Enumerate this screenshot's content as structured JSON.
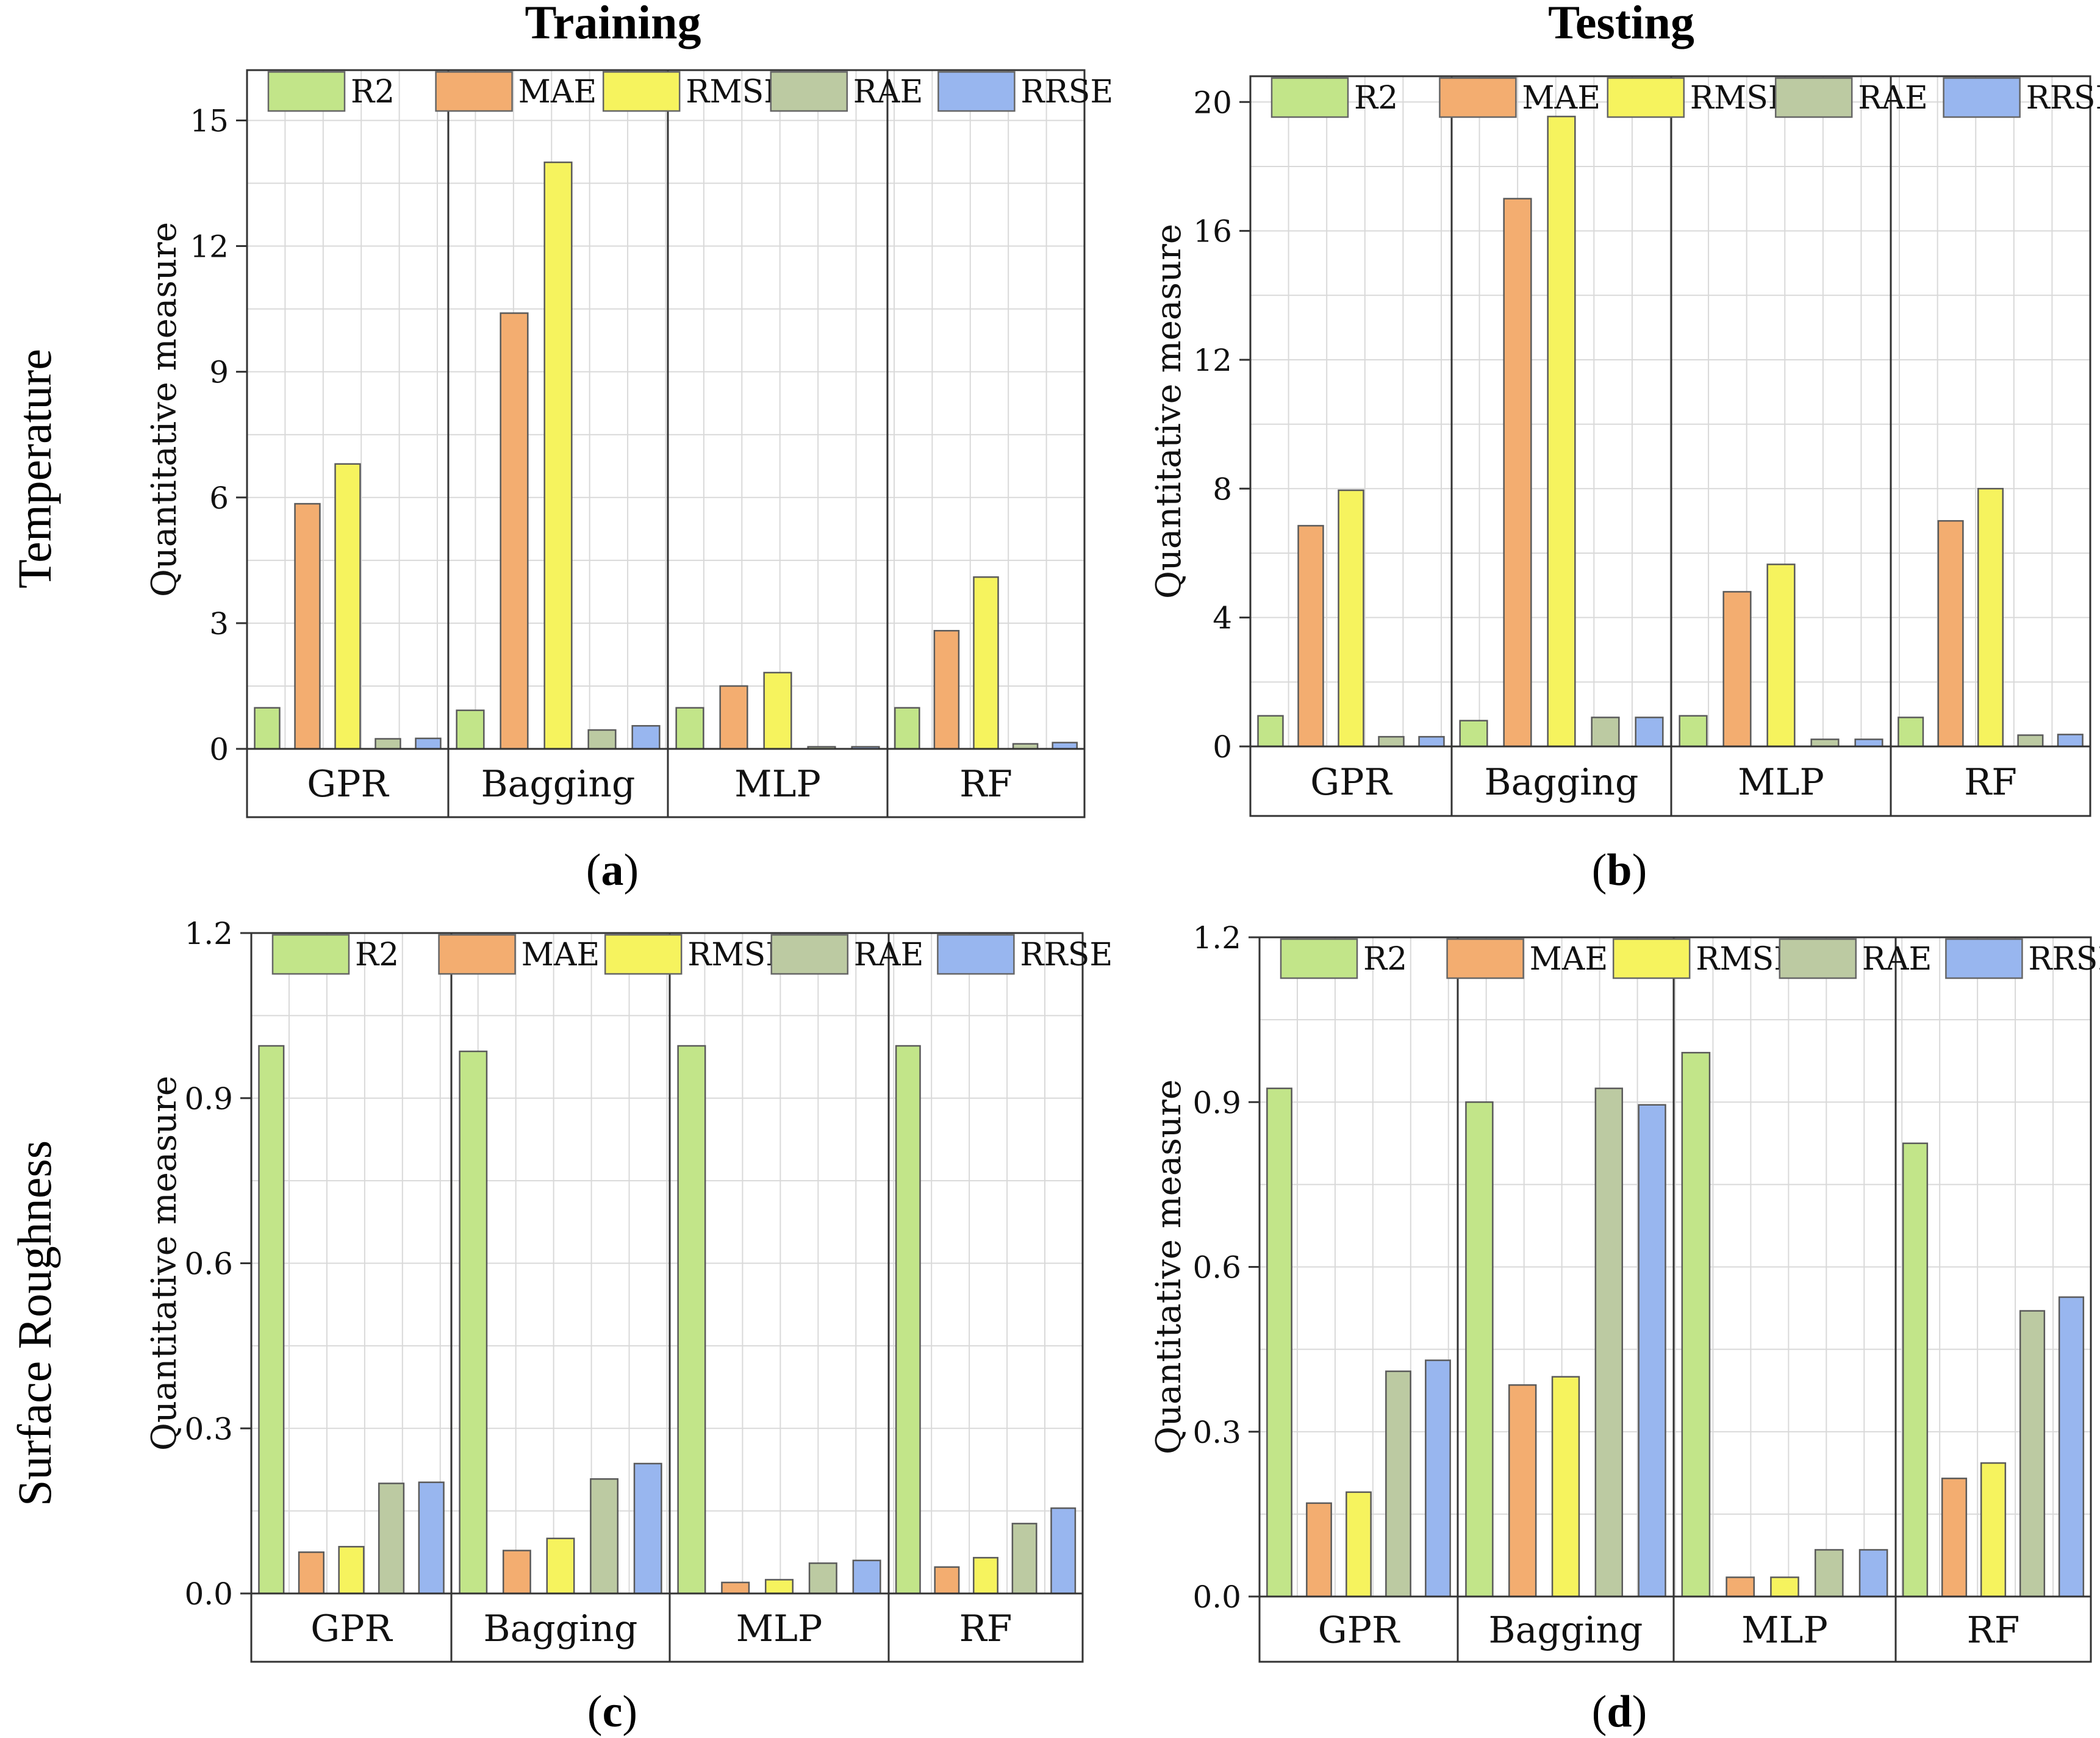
{
  "column_titles": [
    "Training",
    "Testing"
  ],
  "row_titles": [
    "Temperature",
    "Surface Roughness"
  ],
  "colors": {
    "R2": "#c2e589",
    "MAE": "#f3ad70",
    "RMSE": "#f6f35e",
    "RAE": "#bccaa2",
    "RRSE": "#98b6ef",
    "grid": "#d9d9d9",
    "axis": "#333333"
  },
  "chart_data": [
    {
      "type": "bar",
      "panel_label": "a",
      "title": "",
      "xlabel": "",
      "ylabel": "Quantitative measure",
      "categories": [
        "GPR",
        "Bagging",
        "MLP",
        "RF"
      ],
      "ylim": [
        0,
        16.2
      ],
      "yticks": [
        0,
        3,
        6,
        9,
        12,
        15
      ],
      "ytick_labels": [
        "0",
        "3",
        "6",
        "9",
        "12",
        "15"
      ],
      "grid": true,
      "legend_position": "top",
      "series": [
        {
          "name": "R2",
          "values": [
            0.98,
            0.92,
            0.98,
            0.98
          ]
        },
        {
          "name": "MAE",
          "values": [
            5.85,
            10.4,
            1.5,
            2.82
          ]
        },
        {
          "name": "RMSE",
          "values": [
            6.8,
            14.0,
            1.82,
            4.1
          ]
        },
        {
          "name": "RAE",
          "values": [
            0.24,
            0.45,
            0.05,
            0.12
          ]
        },
        {
          "name": "RRSE",
          "values": [
            0.25,
            0.55,
            0.05,
            0.15
          ]
        }
      ]
    },
    {
      "type": "bar",
      "panel_label": "b",
      "title": "",
      "xlabel": "",
      "ylabel": "Quantitative measure",
      "categories": [
        "GPR",
        "Bagging",
        "MLP",
        "RF"
      ],
      "ylim": [
        0,
        20.8
      ],
      "yticks": [
        0,
        4,
        8,
        12,
        16,
        20
      ],
      "ytick_labels": [
        "0",
        "4",
        "8",
        "12",
        "16",
        "20"
      ],
      "grid": true,
      "legend_position": "top",
      "series": [
        {
          "name": "R2",
          "values": [
            0.95,
            0.8,
            0.95,
            0.9
          ]
        },
        {
          "name": "MAE",
          "values": [
            6.85,
            17.0,
            4.8,
            7.0
          ]
        },
        {
          "name": "RMSE",
          "values": [
            7.95,
            19.55,
            5.65,
            8.0
          ]
        },
        {
          "name": "RAE",
          "values": [
            0.3,
            0.9,
            0.22,
            0.35
          ]
        },
        {
          "name": "RRSE",
          "values": [
            0.3,
            0.9,
            0.22,
            0.37
          ]
        }
      ]
    },
    {
      "type": "bar",
      "panel_label": "c",
      "title": "",
      "xlabel": "",
      "ylabel": "Quantitative measure",
      "categories": [
        "GPR",
        "Bagging",
        "MLP",
        "RF"
      ],
      "ylim": [
        0,
        1.2
      ],
      "yticks": [
        0,
        0.3,
        0.6,
        0.9,
        1.2
      ],
      "ytick_labels": [
        "0.0",
        "0.3",
        "0.6",
        "0.9",
        "1.2"
      ],
      "grid": true,
      "legend_position": "top",
      "series": [
        {
          "name": "R2",
          "values": [
            0.995,
            0.985,
            0.995,
            0.995
          ]
        },
        {
          "name": "MAE",
          "values": [
            0.075,
            0.078,
            0.02,
            0.048
          ]
        },
        {
          "name": "RMSE",
          "values": [
            0.085,
            0.1,
            0.025,
            0.065
          ]
        },
        {
          "name": "RAE",
          "values": [
            0.2,
            0.208,
            0.055,
            0.127
          ]
        },
        {
          "name": "RRSE",
          "values": [
            0.202,
            0.236,
            0.06,
            0.155
          ]
        }
      ]
    },
    {
      "type": "bar",
      "panel_label": "d",
      "title": "",
      "xlabel": "",
      "ylabel": "Quantitative measure",
      "categories": [
        "GPR",
        "Bagging",
        "MLP",
        "RF"
      ],
      "ylim": [
        0,
        1.2
      ],
      "yticks": [
        0,
        0.3,
        0.6,
        0.9,
        1.2
      ],
      "ytick_labels": [
        "0.0",
        "0.3",
        "0.6",
        "0.9",
        "1.2"
      ],
      "grid": true,
      "legend_position": "top",
      "series": [
        {
          "name": "R2",
          "values": [
            0.925,
            0.9,
            0.99,
            0.825
          ]
        },
        {
          "name": "MAE",
          "values": [
            0.17,
            0.385,
            0.035,
            0.215
          ]
        },
        {
          "name": "RMSE",
          "values": [
            0.19,
            0.4,
            0.035,
            0.243
          ]
        },
        {
          "name": "RAE",
          "values": [
            0.41,
            0.925,
            0.085,
            0.52
          ]
        },
        {
          "name": "RRSE",
          "values": [
            0.43,
            0.895,
            0.085,
            0.545
          ]
        }
      ]
    }
  ]
}
